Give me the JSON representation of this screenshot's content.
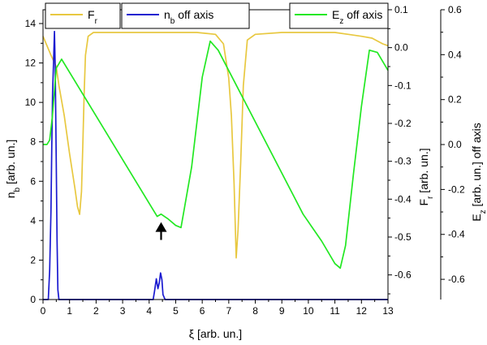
{
  "chart_data": {
    "type": "line",
    "xlabel": "ξ [arb. un.]",
    "xlim": [
      0,
      13
    ],
    "x_ticks": [
      "0",
      "1",
      "2",
      "3",
      "4",
      "5",
      "6",
      "7",
      "8",
      "9",
      "10",
      "11",
      "12",
      "13"
    ],
    "axes": [
      {
        "id": "left",
        "label": "n_b [arb. un.]",
        "label_main": "n",
        "label_sub": "b",
        "label_rest": " [arb. un.]",
        "ylim": [
          0,
          14.7
        ],
        "ticks": [
          "0",
          "2",
          "4",
          "6",
          "8",
          "10",
          "12",
          "14"
        ]
      },
      {
        "id": "right1",
        "label": "F_r [arb. un.]",
        "label_main": "F",
        "label_sub": "r",
        "label_rest": " [arb. un.]",
        "ylim": [
          -0.665,
          0.1
        ],
        "ticks": [
          "0.1",
          "0.0",
          "-0.1",
          "-0.2",
          "-0.3",
          "-0.4",
          "-0.5",
          "-0.6"
        ]
      },
      {
        "id": "right2",
        "label": "E_z [arb. un.] off axis",
        "label_main": "E",
        "label_sub": "z",
        "label_rest": " [arb. un.] off axis",
        "ylim": [
          -0.69,
          0.6
        ],
        "ticks": [
          "0.6",
          "0.4",
          "0.2",
          "0.0",
          "-0.2",
          "-0.4",
          "-0.6"
        ]
      }
    ],
    "series": [
      {
        "name": "F_r",
        "legend_main": "F",
        "legend_sub": "r",
        "legend_rest": "",
        "axis": "right1",
        "color": "#e8c840",
        "x": [
          0,
          0.3,
          0.5,
          0.6,
          0.8,
          1.0,
          1.2,
          1.3,
          1.38,
          1.45,
          1.5,
          1.55,
          1.6,
          1.7,
          1.9,
          2.5,
          4.5,
          5.8,
          6.5,
          6.8,
          7.0,
          7.1,
          7.2,
          7.28,
          7.35,
          7.45,
          7.55,
          7.7,
          8.0,
          9.0,
          10.0,
          11.0,
          11.5,
          12.0,
          12.4,
          12.8,
          13.0
        ],
        "y": [
          0.03,
          -0.02,
          -0.05,
          -0.1,
          -0.18,
          -0.28,
          -0.37,
          -0.42,
          -0.44,
          -0.38,
          -0.26,
          -0.12,
          -0.02,
          0.03,
          0.04,
          0.04,
          0.04,
          0.04,
          0.035,
          0.01,
          -0.08,
          -0.18,
          -0.36,
          -0.555,
          -0.48,
          -0.3,
          -0.1,
          0.02,
          0.035,
          0.04,
          0.04,
          0.04,
          0.035,
          0.03,
          0.025,
          0.01,
          0.005
        ]
      },
      {
        "name": "n_b off axis",
        "legend_main": "n",
        "legend_sub": "b",
        "legend_rest": " off axis",
        "axis": "left",
        "color": "#1a1ad0",
        "x": [
          0,
          0.2,
          0.25,
          0.3,
          0.33,
          0.36,
          0.4,
          0.43,
          0.46,
          0.5,
          0.53,
          0.56,
          0.6,
          1.0,
          4.15,
          4.2,
          4.27,
          4.33,
          4.38,
          4.43,
          4.48,
          4.52,
          4.6,
          13.0
        ],
        "y": [
          0,
          0,
          1.5,
          4.5,
          7.8,
          10.5,
          12.2,
          13.6,
          11.8,
          7.0,
          3.0,
          0.5,
          0,
          0,
          0,
          0.4,
          1.05,
          0.55,
          0.85,
          1.35,
          1.0,
          0.25,
          0,
          0
        ]
      },
      {
        "name": "E_z off axis",
        "legend_main": "E",
        "legend_sub": "z",
        "legend_rest": " off axis",
        "axis": "right2",
        "color": "#22e822",
        "x": [
          0,
          0.15,
          0.25,
          0.35,
          0.5,
          0.7,
          4.3,
          4.45,
          4.7,
          5.0,
          5.2,
          5.6,
          6.0,
          6.3,
          6.6,
          9.8,
          10.5,
          11.0,
          11.2,
          11.4,
          11.7,
          12.0,
          12.3,
          12.6,
          12.8,
          13.0
        ],
        "y": [
          0,
          0,
          0.02,
          0.12,
          0.34,
          0.38,
          -0.32,
          -0.31,
          -0.33,
          -0.36,
          -0.37,
          -0.1,
          0.3,
          0.46,
          0.42,
          -0.31,
          -0.43,
          -0.53,
          -0.55,
          -0.45,
          -0.13,
          0.17,
          0.42,
          0.41,
          0.37,
          0.33
        ]
      }
    ],
    "legend_placement": "top",
    "grid": false,
    "annotations": [
      {
        "type": "arrow",
        "x": 4.45,
        "y_axis": "left",
        "y": 3.6,
        "direction": "up",
        "color": "#000000"
      }
    ]
  }
}
